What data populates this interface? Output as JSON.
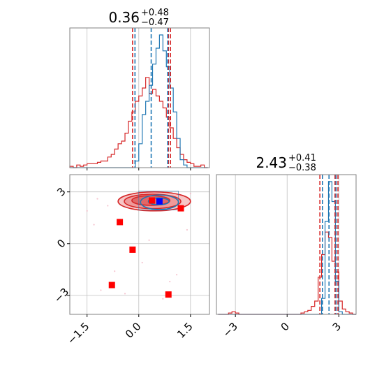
{
  "colors": {
    "blue": "#1f77b4",
    "red": "#d62728",
    "grid": "#c0c0c0",
    "frame": "#808080"
  },
  "chart_data": {
    "type": "corner",
    "params": [
      {
        "title_value": "0.36",
        "title_plus": "+0.48",
        "title_minus": "−0.47",
        "range": [
          -2.0,
          2.05
        ]
      },
      {
        "title_value": "2.43",
        "title_plus": "+0.41",
        "title_minus": "−0.38",
        "range": [
          -4.1,
          4.0
        ]
      }
    ],
    "x_ticks_param1": [
      {
        "value": -1.5,
        "label": "−1.5"
      },
      {
        "value": 0.0,
        "label": "0.0"
      },
      {
        "value": 1.5,
        "label": "1.5"
      }
    ],
    "x_ticks_param2": [
      {
        "value": -3,
        "label": "−3"
      },
      {
        "value": 0,
        "label": "0"
      },
      {
        "value": 3,
        "label": "3"
      }
    ],
    "y_ticks_param2": [
      {
        "value": 3,
        "label": "3"
      },
      {
        "value": 0,
        "label": "0"
      },
      {
        "value": -3,
        "label": "−3"
      }
    ],
    "grid": true,
    "quantile_lines": {
      "param1": {
        "blue": [
          -0.11,
          0.36,
          0.84
        ],
        "red": [
          -0.18,
          0.86,
          0.92
        ]
      },
      "param2": {
        "blue": [
          2.05,
          2.43,
          2.84
        ],
        "red": [
          1.9,
          2.78,
          2.95
        ]
      }
    },
    "hist_param1": {
      "bins": [
        -2.0,
        -1.9,
        -1.8,
        -1.7,
        -1.6,
        -1.5,
        -1.4,
        -1.3,
        -1.2,
        -1.1,
        -1.0,
        -0.9,
        -0.8,
        -0.7,
        -0.6,
        -0.5,
        -0.4,
        -0.3,
        -0.2,
        -0.1,
        0.0,
        0.1,
        0.2,
        0.3,
        0.4,
        0.5,
        0.6,
        0.7,
        0.8,
        0.9,
        1.0,
        1.1,
        1.2,
        1.3,
        1.4,
        1.5,
        1.6,
        1.7,
        1.8,
        1.9,
        2.0
      ],
      "red": [
        0.01,
        0.0,
        0.02,
        0.01,
        0.02,
        0.03,
        0.03,
        0.03,
        0.04,
        0.05,
        0.05,
        0.08,
        0.1,
        0.14,
        0.18,
        0.2,
        0.26,
        0.35,
        0.42,
        0.5,
        0.54,
        0.6,
        0.68,
        0.56,
        0.59,
        0.54,
        0.5,
        0.45,
        0.38,
        0.3,
        0.22,
        0.15,
        0.1,
        0.06,
        0.04,
        0.03,
        0.01,
        0.01,
        0.02,
        0.0
      ],
      "blue": [
        0.0,
        0.0,
        0.0,
        0.0,
        0.0,
        0.0,
        0.0,
        0.0,
        0.0,
        0.0,
        0.0,
        0.0,
        0.0,
        0.0,
        0.0,
        0.0,
        0.0,
        0.0,
        0.0,
        0.05,
        0.18,
        0.4,
        0.5,
        0.62,
        0.78,
        0.9,
        1.0,
        0.88,
        0.76,
        0.6,
        0.42,
        0.22,
        0.06,
        0.02,
        0.0,
        0.0,
        0.0,
        0.0,
        0.0,
        0.0
      ]
    },
    "hist_param2": {
      "bins": [
        -4.0,
        -3.8,
        -3.6,
        -3.4,
        -3.2,
        -3.0,
        -2.8,
        -2.6,
        -2.4,
        -2.2,
        -2.0,
        -1.8,
        -1.6,
        -1.4,
        -1.2,
        -1.0,
        -0.8,
        -0.6,
        -0.4,
        -0.2,
        0.0,
        0.2,
        0.4,
        0.6,
        0.8,
        1.0,
        1.2,
        1.4,
        1.6,
        1.8,
        2.0,
        2.2,
        2.4,
        2.6,
        2.8,
        3.0,
        3.2,
        3.4,
        3.6,
        3.8,
        4.0
      ],
      "red": [
        0.0,
        0.0,
        0.0,
        0.01,
        0.02,
        0.01,
        0.0,
        0.0,
        0.0,
        0.0,
        0.0,
        0.0,
        0.0,
        0.0,
        0.0,
        0.0,
        0.0,
        0.0,
        0.0,
        0.0,
        0.0,
        0.0,
        0.0,
        0.0,
        0.01,
        0.02,
        0.03,
        0.06,
        0.1,
        0.28,
        0.45,
        0.62,
        0.58,
        0.4,
        0.32,
        0.1,
        0.04,
        0.02,
        0.01,
        0.0
      ],
      "blue": [
        0.0,
        0.0,
        0.0,
        0.0,
        0.0,
        0.0,
        0.0,
        0.0,
        0.0,
        0.0,
        0.0,
        0.0,
        0.0,
        0.0,
        0.0,
        0.0,
        0.0,
        0.0,
        0.0,
        0.0,
        0.0,
        0.0,
        0.0,
        0.0,
        0.0,
        0.0,
        0.0,
        0.0,
        0.0,
        0.0,
        0.12,
        0.7,
        1.0,
        0.85,
        0.25,
        0.02,
        0.0,
        0.0,
        0.0,
        0.0
      ]
    },
    "contours_2d": {
      "red": [
        {
          "level": "outer",
          "center": [
            0.45,
            2.45
          ],
          "radii": [
            1.05,
            0.55
          ]
        },
        {
          "level": "middle",
          "center": [
            0.4,
            2.45
          ],
          "radii": [
            0.82,
            0.42
          ]
        },
        {
          "level": "inner",
          "center": [
            0.35,
            2.5
          ],
          "radii": [
            0.55,
            0.28
          ]
        }
      ],
      "blue": [
        {
          "level": "outer",
          "center": [
            0.6,
            2.4
          ],
          "radii": [
            0.55,
            0.42
          ]
        },
        {
          "level": "inner",
          "center": [
            0.58,
            2.45
          ],
          "radii": [
            0.3,
            0.2
          ]
        }
      ]
    },
    "markers_red": [
      [
        0.38,
        2.5
      ],
      [
        1.22,
        2.05
      ],
      [
        -0.55,
        1.25
      ],
      [
        -0.18,
        -0.35
      ],
      [
        -0.78,
        -2.4
      ],
      [
        0.86,
        -2.95
      ]
    ],
    "markers_blue": [
      [
        0.6,
        2.45
      ]
    ],
    "background_points": [
      [
        -1.2,
        2.6
      ],
      [
        -1.5,
        1.9
      ],
      [
        0.1,
        -1.1
      ],
      [
        -0.4,
        -2.9
      ],
      [
        1.4,
        0.8
      ],
      [
        0.9,
        -2.2
      ],
      [
        -0.9,
        2.2
      ],
      [
        -1.1,
        -2.7
      ],
      [
        1.1,
        -1.8
      ],
      [
        0.3,
        0.2
      ],
      [
        -0.7,
        -1.6
      ],
      [
        1.5,
        2.9
      ],
      [
        0.7,
        -3.2
      ],
      [
        -1.3,
        1.1
      ]
    ]
  }
}
